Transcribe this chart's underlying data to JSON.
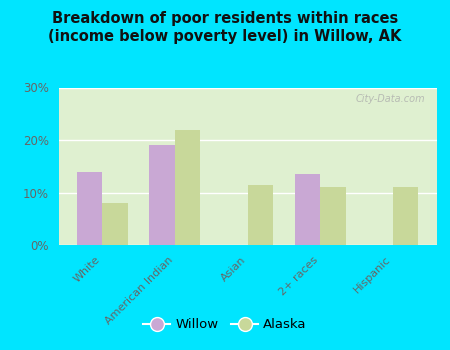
{
  "title": "Breakdown of poor residents within races\n(income below poverty level) in Willow, AK",
  "categories": [
    "White",
    "American Indian",
    "Asian",
    "2+ races",
    "Hispanic"
  ],
  "willow_values": [
    14,
    19,
    0,
    13.5,
    0
  ],
  "alaska_values": [
    8,
    22,
    11.5,
    11,
    11
  ],
  "willow_color": "#c9a8d4",
  "alaska_color": "#c8d89a",
  "ylim": [
    0,
    30
  ],
  "yticks": [
    0,
    10,
    20,
    30
  ],
  "ytick_labels": [
    "0%",
    "10%",
    "20%",
    "30%"
  ],
  "axes_bg": "#dff0d0",
  "bar_width": 0.35,
  "legend_labels": [
    "Willow",
    "Alaska"
  ],
  "watermark": "City-Data.com",
  "outer_bg": "#00e5ff",
  "title_color": "#111111",
  "tick_color": "#666666",
  "grid_color": "#ffffff"
}
